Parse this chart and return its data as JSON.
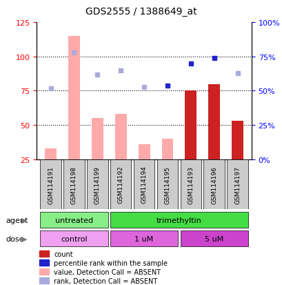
{
  "title": "GDS2555 / 1388649_at",
  "samples": [
    "GSM114191",
    "GSM114198",
    "GSM114199",
    "GSM114192",
    "GSM114194",
    "GSM114195",
    "GSM114193",
    "GSM114196",
    "GSM114197"
  ],
  "pink_heights": [
    33,
    115,
    55,
    58,
    36,
    40,
    null,
    null,
    null
  ],
  "red_heights": [
    null,
    null,
    null,
    null,
    null,
    null,
    75,
    80,
    53
  ],
  "blue_ranks": [
    null,
    null,
    null,
    null,
    null,
    54,
    70,
    74,
    null
  ],
  "lb_ranks": [
    52,
    78,
    62,
    65,
    53,
    null,
    null,
    null,
    63
  ],
  "ylim_left": [
    25,
    125
  ],
  "left_ticks": [
    25,
    50,
    75,
    100,
    125
  ],
  "right_ticks": [
    0,
    25,
    50,
    75,
    100
  ],
  "right_tick_labels": [
    "0%",
    "25%",
    "50%",
    "75%",
    "100%"
  ],
  "red_color": "#cc2222",
  "blue_color": "#2222cc",
  "pink_color": "#ffaaaa",
  "lightblue_color": "#aaaadd",
  "bar_width": 0.5,
  "bar_bottom": 25,
  "agent_groups": [
    {
      "label": "untreated",
      "xstart": -0.45,
      "xend": 2.45,
      "color": "#88ee88"
    },
    {
      "label": "trimethyltin",
      "xstart": 2.55,
      "xend": 8.45,
      "color": "#44dd44"
    }
  ],
  "dose_groups": [
    {
      "label": "control",
      "xstart": -0.45,
      "xend": 2.45,
      "color": "#f0a0f0"
    },
    {
      "label": "1 uM",
      "xstart": 2.55,
      "xend": 5.45,
      "color": "#dd66dd"
    },
    {
      "label": "5 uM",
      "xstart": 5.55,
      "xend": 8.45,
      "color": "#cc44cc"
    }
  ],
  "legend_items": [
    {
      "color": "#cc2222",
      "label": "count"
    },
    {
      "color": "#2222cc",
      "label": "percentile rank within the sample"
    },
    {
      "color": "#ffaaaa",
      "label": "value, Detection Call = ABSENT"
    },
    {
      "color": "#aaaadd",
      "label": "rank, Detection Call = ABSENT"
    }
  ],
  "grid_lines": [
    50,
    75,
    100
  ]
}
